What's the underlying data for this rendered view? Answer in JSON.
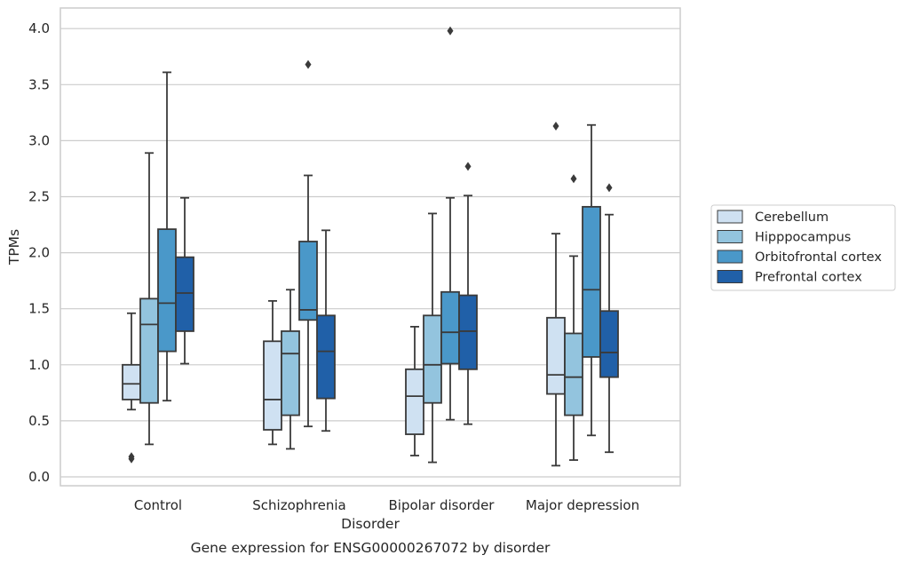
{
  "chart_data": {
    "type": "box",
    "xlabel": "Disorder",
    "ylabel": "TPMs",
    "caption": "Gene expression for ENSG00000267072 by disorder",
    "ylim": [
      -0.08,
      4.18
    ],
    "yticks": [
      "0.0",
      "0.5",
      "1.0",
      "1.5",
      "2.0",
      "2.5",
      "3.0",
      "3.5",
      "4.0"
    ],
    "grid": "horizontal",
    "legend_position": "right",
    "categories": [
      "Control",
      "Schizophrenia",
      "Bipolar disorder",
      "Major depression"
    ],
    "series": [
      {
        "name": "Cerebellum",
        "color": "#cfe1f2",
        "boxes": [
          {
            "whisker_low": 0.6,
            "q1": 0.69,
            "median": 0.83,
            "q3": 1.0,
            "whisker_high": 1.46,
            "outliers": [
              0.16,
              0.18
            ]
          },
          {
            "whisker_low": 0.29,
            "q1": 0.42,
            "median": 0.69,
            "q3": 1.21,
            "whisker_high": 1.57,
            "outliers": []
          },
          {
            "whisker_low": 0.19,
            "q1": 0.38,
            "median": 0.72,
            "q3": 0.96,
            "whisker_high": 1.34,
            "outliers": []
          },
          {
            "whisker_low": 0.1,
            "q1": 0.74,
            "median": 0.91,
            "q3": 1.42,
            "whisker_high": 2.17,
            "outliers": [
              3.13
            ]
          }
        ]
      },
      {
        "name": "Hipppocampus",
        "color": "#93c4de",
        "boxes": [
          {
            "whisker_low": 0.29,
            "q1": 0.66,
            "median": 1.36,
            "q3": 1.59,
            "whisker_high": 2.89,
            "outliers": []
          },
          {
            "whisker_low": 0.25,
            "q1": 0.55,
            "median": 1.1,
            "q3": 1.3,
            "whisker_high": 1.67,
            "outliers": []
          },
          {
            "whisker_low": 0.13,
            "q1": 0.66,
            "median": 1.0,
            "q3": 1.44,
            "whisker_high": 2.35,
            "outliers": []
          },
          {
            "whisker_low": 0.15,
            "q1": 0.55,
            "median": 0.89,
            "q3": 1.28,
            "whisker_high": 1.97,
            "outliers": [
              2.66
            ]
          }
        ]
      },
      {
        "name": "Orbitofrontal cortex",
        "color": "#4a98c9",
        "boxes": [
          {
            "whisker_low": 0.68,
            "q1": 1.12,
            "median": 1.55,
            "q3": 2.21,
            "whisker_high": 3.61,
            "outliers": []
          },
          {
            "whisker_low": 0.45,
            "q1": 1.4,
            "median": 1.49,
            "q3": 2.1,
            "whisker_high": 2.69,
            "outliers": [
              3.68
            ]
          },
          {
            "whisker_low": 0.51,
            "q1": 1.01,
            "median": 1.29,
            "q3": 1.65,
            "whisker_high": 2.49,
            "outliers": [
              3.98
            ]
          },
          {
            "whisker_low": 0.37,
            "q1": 1.07,
            "median": 1.67,
            "q3": 2.41,
            "whisker_high": 3.14,
            "outliers": []
          }
        ]
      },
      {
        "name": "Prefrontal cortex",
        "color": "#2060a8",
        "boxes": [
          {
            "whisker_low": 1.01,
            "q1": 1.3,
            "median": 1.64,
            "q3": 1.96,
            "whisker_high": 2.49,
            "outliers": []
          },
          {
            "whisker_low": 0.41,
            "q1": 0.7,
            "median": 1.12,
            "q3": 1.44,
            "whisker_high": 2.2,
            "outliers": []
          },
          {
            "whisker_low": 0.47,
            "q1": 0.96,
            "median": 1.3,
            "q3": 1.62,
            "whisker_high": 2.51,
            "outliers": [
              2.77
            ]
          },
          {
            "whisker_low": 0.22,
            "q1": 0.89,
            "median": 1.11,
            "q3": 1.48,
            "whisker_high": 2.34,
            "outliers": [
              2.58
            ]
          }
        ]
      }
    ]
  }
}
